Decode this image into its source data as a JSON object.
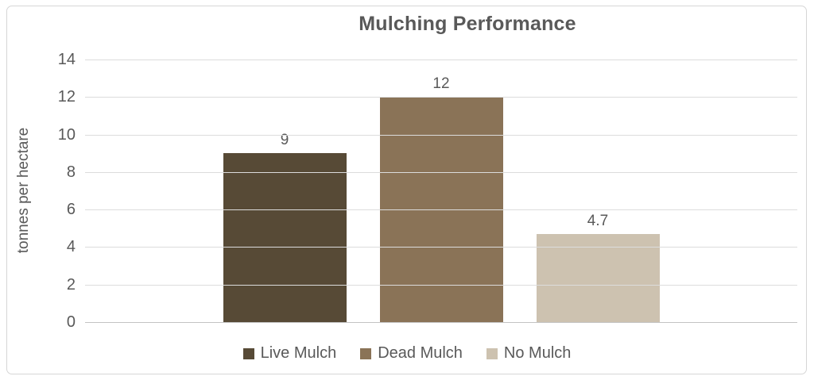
{
  "frame": {
    "border_color": "#d6d6d6",
    "background": "#ffffff"
  },
  "chart_data": {
    "type": "bar",
    "title": "Mulching Performance",
    "ylabel": "tonnes per hectare",
    "xlabel": "",
    "categories": [
      "Live Mulch",
      "Dead Mulch",
      "No Mulch"
    ],
    "values": [
      9,
      12,
      4.7
    ],
    "data_labels": [
      "9",
      "12",
      "4.7"
    ],
    "bar_colors": [
      "#574a36",
      "#8a7357",
      "#cdc2b0"
    ],
    "ylim": [
      0,
      14
    ],
    "yticks": [
      0,
      2,
      4,
      6,
      8,
      10,
      12,
      14
    ],
    "grid": true,
    "legend_position": "bottom",
    "text_color": "#595959",
    "gridline_color": "#dcdcdc",
    "axis_line_color": "#c3c3c3"
  }
}
